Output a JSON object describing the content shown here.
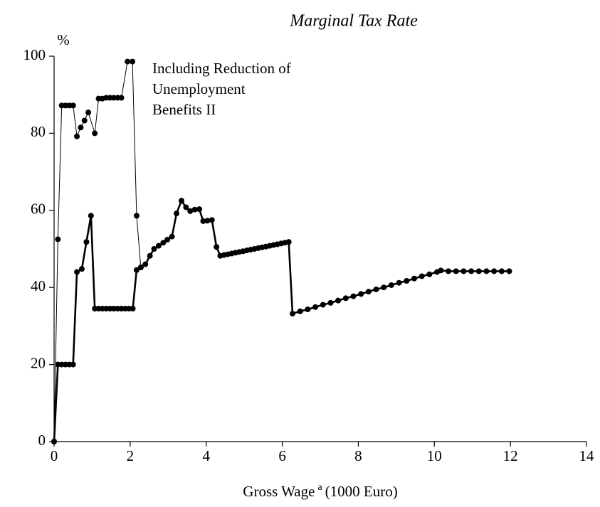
{
  "chart_data": {
    "type": "line",
    "title": "Marginal Tax Rate",
    "ylabel": "%",
    "xlabel": "Gross Wage",
    "xlabel_sup": "a",
    "xlabel_unit": "(1000 Euro)",
    "annotation": [
      "Including Reduction of",
      "Unemployment",
      "Benefits II"
    ],
    "xlim": [
      0,
      14
    ],
    "xticks": [
      0,
      2,
      4,
      6,
      8,
      10,
      12,
      14
    ],
    "ylim": [
      0,
      100
    ],
    "yticks": [
      0,
      20,
      40,
      60,
      80,
      100
    ],
    "series": [
      {
        "color": "#000000",
        "width": 2.6,
        "x": [
          0,
          0.1,
          0.2,
          0.3,
          0.4,
          0.5,
          0.6,
          0.73,
          0.85,
          0.97,
          1.07,
          1.17,
          1.27,
          1.37,
          1.47,
          1.57,
          1.67,
          1.77,
          1.87,
          1.97,
          2.07,
          2.17,
          2.28,
          2.4,
          2.52,
          2.63,
          2.75,
          2.87,
          2.98,
          3.1,
          3.22,
          3.35,
          3.47,
          3.58,
          3.7,
          3.82,
          3.92,
          4.03,
          4.15,
          4.27,
          4.37,
          4.47,
          4.57,
          4.67,
          4.77,
          4.87,
          4.97,
          5.07,
          5.17,
          5.27,
          5.37,
          5.47,
          5.57,
          5.67,
          5.77,
          5.87,
          5.97,
          6.07,
          6.17,
          6.27,
          6.47,
          6.67,
          6.87,
          7.07,
          7.27,
          7.47,
          7.67,
          7.87,
          8.07,
          8.27,
          8.47,
          8.67,
          8.87,
          9.07,
          9.27,
          9.47,
          9.67,
          9.87,
          10.07,
          10.17,
          10.37,
          10.57,
          10.77,
          10.97,
          11.17,
          11.37,
          11.57,
          11.77,
          11.97
        ],
        "values": [
          0,
          20,
          20,
          20,
          20,
          20,
          44,
          44.8,
          51.8,
          58.6,
          34.5,
          34.5,
          34.5,
          34.5,
          34.5,
          34.5,
          34.5,
          34.5,
          34.5,
          34.5,
          34.5,
          44.5,
          45.2,
          46,
          48.2,
          50,
          50.8,
          51.6,
          52.4,
          53.2,
          59.2,
          62.5,
          60.8,
          59.8,
          60.2,
          60.3,
          57.2,
          57.3,
          57.5,
          50.5,
          48.2,
          48.4,
          48.6,
          48.8,
          49,
          49.2,
          49.4,
          49.6,
          49.8,
          50,
          50.2,
          50.4,
          50.6,
          50.8,
          51,
          51.2,
          51.4,
          51.6,
          51.8,
          33.2,
          33.8,
          34.3,
          34.9,
          35.5,
          36,
          36.6,
          37.2,
          37.7,
          38.3,
          38.9,
          39.5,
          40,
          40.6,
          41.2,
          41.7,
          42.3,
          42.9,
          43.4,
          44,
          44.4,
          44.2,
          44.2,
          44.2,
          44.2,
          44.2,
          44.2,
          44.2,
          44.2,
          44.2
        ]
      },
      {
        "color": "#000000",
        "width": 1,
        "x": [
          0,
          0.1,
          0.2,
          0.3,
          0.4,
          0.5,
          0.6,
          0.7,
          0.8,
          0.9,
          1.07,
          1.17,
          1.27,
          1.37,
          1.47,
          1.57,
          1.67,
          1.77,
          1.93,
          2.06,
          2.17,
          2.28
        ],
        "values": [
          0,
          52.5,
          87.2,
          87.2,
          87.2,
          87.2,
          79.2,
          81.5,
          83.3,
          85.4,
          80,
          89,
          89,
          89.2,
          89.2,
          89.2,
          89.2,
          89.2,
          98.6,
          98.6,
          58.6,
          45.2
        ]
      }
    ]
  }
}
